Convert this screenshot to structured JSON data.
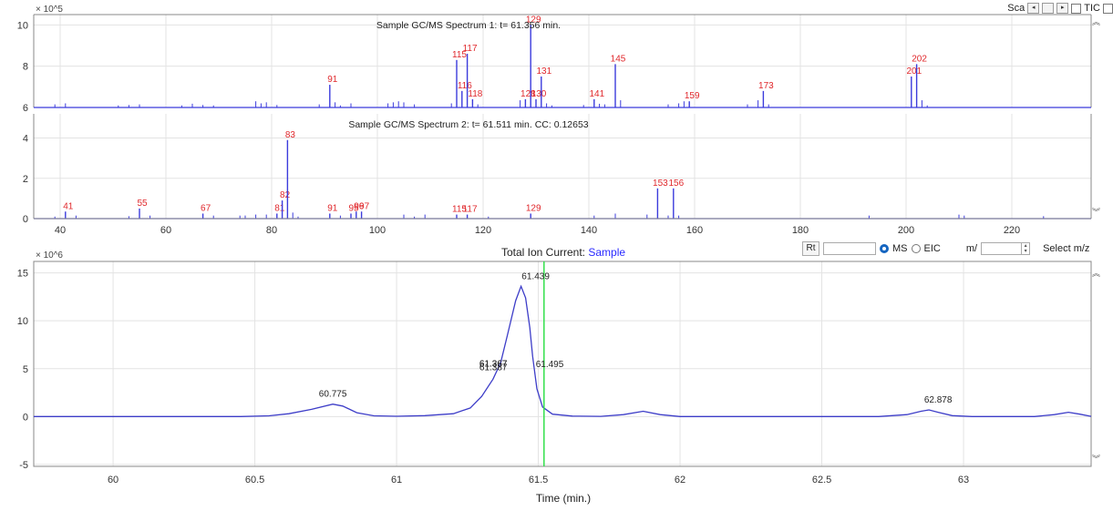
{
  "toolbar": {
    "sca_label": "Sca",
    "tic_label": "TIC"
  },
  "controls": {
    "rt_label": "Rt",
    "ms_label": "MS",
    "eic_label": "EIC",
    "mz_label": "m/",
    "select_mz_label": "Select m/z",
    "ms_selected": true
  },
  "colors": {
    "spectrum": "#3b3bdc",
    "peak_label": "#e0282c",
    "tic_line": "#3d3dc8",
    "time_cursor": "#33e04c",
    "tic_title_sample": "#2a2aff"
  },
  "chart_data": [
    {
      "type": "bar",
      "title": "Sample GC/MS Spectrum 1: t= 61.356 min.",
      "ylabel_multiplier": "× 10^5",
      "ylim": [
        6,
        10.5
      ],
      "yticks": [
        6,
        8,
        10
      ],
      "xlim": [
        35,
        235
      ],
      "grid": true,
      "labeled_peaks": [
        {
          "x": 91,
          "y": 7.1,
          "label": "91"
        },
        {
          "x": 115,
          "y": 8.3,
          "label": "115"
        },
        {
          "x": 116,
          "y": 6.8,
          "label": "116"
        },
        {
          "x": 117,
          "y": 8.6,
          "label": "117"
        },
        {
          "x": 118,
          "y": 6.4,
          "label": "118"
        },
        {
          "x": 128,
          "y": 6.4,
          "label": "128"
        },
        {
          "x": 129,
          "y": 10.0,
          "label": "129"
        },
        {
          "x": 130,
          "y": 6.4,
          "label": "130"
        },
        {
          "x": 131,
          "y": 7.5,
          "label": "131"
        },
        {
          "x": 141,
          "y": 6.4,
          "label": "141"
        },
        {
          "x": 145,
          "y": 8.1,
          "label": "145"
        },
        {
          "x": 159,
          "y": 6.3,
          "label": "159"
        },
        {
          "x": 173,
          "y": 6.8,
          "label": "173"
        },
        {
          "x": 201,
          "y": 7.5,
          "label": "201"
        },
        {
          "x": 202,
          "y": 8.1,
          "label": "202"
        }
      ],
      "minor_peaks": [
        {
          "x": 39,
          "y": 6.15
        },
        {
          "x": 41,
          "y": 6.2
        },
        {
          "x": 51,
          "y": 6.1
        },
        {
          "x": 53,
          "y": 6.12
        },
        {
          "x": 55,
          "y": 6.15
        },
        {
          "x": 63,
          "y": 6.1
        },
        {
          "x": 65,
          "y": 6.18
        },
        {
          "x": 67,
          "y": 6.12
        },
        {
          "x": 69,
          "y": 6.1
        },
        {
          "x": 77,
          "y": 6.3
        },
        {
          "x": 78,
          "y": 6.2
        },
        {
          "x": 79,
          "y": 6.25
        },
        {
          "x": 81,
          "y": 6.12
        },
        {
          "x": 89,
          "y": 6.15
        },
        {
          "x": 92,
          "y": 6.25
        },
        {
          "x": 93,
          "y": 6.1
        },
        {
          "x": 95,
          "y": 6.2
        },
        {
          "x": 102,
          "y": 6.2
        },
        {
          "x": 103,
          "y": 6.25
        },
        {
          "x": 104,
          "y": 6.3
        },
        {
          "x": 105,
          "y": 6.25
        },
        {
          "x": 107,
          "y": 6.15
        },
        {
          "x": 114,
          "y": 6.2
        },
        {
          "x": 119,
          "y": 6.15
        },
        {
          "x": 127,
          "y": 6.35
        },
        {
          "x": 132,
          "y": 6.2
        },
        {
          "x": 133,
          "y": 6.1
        },
        {
          "x": 139,
          "y": 6.12
        },
        {
          "x": 142,
          "y": 6.18
        },
        {
          "x": 143,
          "y": 6.15
        },
        {
          "x": 146,
          "y": 6.35
        },
        {
          "x": 155,
          "y": 6.15
        },
        {
          "x": 157,
          "y": 6.2
        },
        {
          "x": 158,
          "y": 6.3
        },
        {
          "x": 170,
          "y": 6.15
        },
        {
          "x": 172,
          "y": 6.35
        },
        {
          "x": 174,
          "y": 6.15
        },
        {
          "x": 203,
          "y": 6.35
        },
        {
          "x": 204,
          "y": 6.1
        }
      ]
    },
    {
      "type": "bar",
      "title": "Sample GC/MS Spectrum 2: t= 61.511 min. CC: 0.12653",
      "ylim": [
        0,
        5.2
      ],
      "yticks": [
        0,
        2,
        4
      ],
      "xlim": [
        35,
        235
      ],
      "xticks": [
        40,
        60,
        80,
        100,
        120,
        140,
        160,
        180,
        200,
        220
      ],
      "grid": true,
      "labeled_peaks": [
        {
          "x": 41,
          "y": 0.35,
          "label": "41"
        },
        {
          "x": 55,
          "y": 0.5,
          "label": "55"
        },
        {
          "x": 67,
          "y": 0.25,
          "label": "67"
        },
        {
          "x": 81,
          "y": 0.25,
          "label": "81"
        },
        {
          "x": 82,
          "y": 0.9,
          "label": "82"
        },
        {
          "x": 83,
          "y": 3.9,
          "label": "83"
        },
        {
          "x": 91,
          "y": 0.25,
          "label": "91"
        },
        {
          "x": 95,
          "y": 0.25,
          "label": "95"
        },
        {
          "x": 96,
          "y": 0.35,
          "label": "96"
        },
        {
          "x": 97,
          "y": 0.35,
          "label": "97"
        },
        {
          "x": 115,
          "y": 0.2,
          "label": "115"
        },
        {
          "x": 117,
          "y": 0.2,
          "label": "117"
        },
        {
          "x": 129,
          "y": 0.25,
          "label": "129"
        },
        {
          "x": 153,
          "y": 1.5,
          "label": "153"
        },
        {
          "x": 156,
          "y": 1.5,
          "label": "156"
        }
      ],
      "minor_peaks": [
        {
          "x": 39,
          "y": 0.1
        },
        {
          "x": 43,
          "y": 0.15
        },
        {
          "x": 53,
          "y": 0.12
        },
        {
          "x": 57,
          "y": 0.15
        },
        {
          "x": 69,
          "y": 0.15
        },
        {
          "x": 74,
          "y": 0.15
        },
        {
          "x": 75,
          "y": 0.15
        },
        {
          "x": 77,
          "y": 0.2
        },
        {
          "x": 79,
          "y": 0.2
        },
        {
          "x": 84,
          "y": 0.3
        },
        {
          "x": 85,
          "y": 0.1
        },
        {
          "x": 93,
          "y": 0.15
        },
        {
          "x": 105,
          "y": 0.2
        },
        {
          "x": 107,
          "y": 0.1
        },
        {
          "x": 109,
          "y": 0.2
        },
        {
          "x": 121,
          "y": 0.1
        },
        {
          "x": 141,
          "y": 0.15
        },
        {
          "x": 145,
          "y": 0.25
        },
        {
          "x": 151,
          "y": 0.2
        },
        {
          "x": 155,
          "y": 0.15
        },
        {
          "x": 157,
          "y": 0.15
        },
        {
          "x": 193,
          "y": 0.15
        },
        {
          "x": 210,
          "y": 0.2
        },
        {
          "x": 211,
          "y": 0.15
        },
        {
          "x": 226,
          "y": 0.12
        }
      ]
    },
    {
      "type": "line",
      "title_prefix": "Total Ion Current:",
      "title_series": "Sample",
      "xlabel": "Time (min.)",
      "ylabel_multiplier": "× 10^6",
      "xlim": [
        59.72,
        63.45
      ],
      "ylim": [
        -5.2,
        16.2
      ],
      "xticks": [
        60,
        60.5,
        61,
        61.5,
        62,
        62.5,
        63
      ],
      "yticks": [
        -5,
        0,
        5,
        10,
        15
      ],
      "grid": true,
      "cursor_time": 61.52,
      "series": [
        {
          "values": [
            [
              59.72,
              0
            ],
            [
              60.45,
              0
            ],
            [
              60.55,
              0.08
            ],
            [
              60.62,
              0.3
            ],
            [
              60.7,
              0.75
            ],
            [
              60.775,
              1.3
            ],
            [
              60.81,
              1.1
            ],
            [
              60.86,
              0.4
            ],
            [
              60.92,
              0.08
            ],
            [
              61.0,
              0.03
            ],
            [
              61.1,
              0.1
            ],
            [
              61.2,
              0.3
            ],
            [
              61.26,
              0.9
            ],
            [
              61.3,
              2.1
            ],
            [
              61.34,
              3.9
            ],
            [
              61.367,
              5.6
            ],
            [
              61.39,
              8.4
            ],
            [
              61.42,
              12.1
            ],
            [
              61.439,
              13.6
            ],
            [
              61.455,
              12.4
            ],
            [
              61.47,
              9.3
            ],
            [
              61.48,
              6.3
            ],
            [
              61.495,
              2.9
            ],
            [
              61.515,
              1.0
            ],
            [
              61.55,
              0.25
            ],
            [
              61.62,
              0.05
            ],
            [
              61.72,
              0.02
            ],
            [
              61.8,
              0.2
            ],
            [
              61.87,
              0.55
            ],
            [
              61.93,
              0.2
            ],
            [
              62.0,
              0
            ],
            [
              62.7,
              0
            ],
            [
              62.8,
              0.2
            ],
            [
              62.85,
              0.55
            ],
            [
              62.878,
              0.7
            ],
            [
              62.91,
              0.45
            ],
            [
              62.96,
              0.1
            ],
            [
              63.03,
              0
            ],
            [
              63.25,
              0
            ],
            [
              63.32,
              0.2
            ],
            [
              63.37,
              0.45
            ],
            [
              63.41,
              0.25
            ],
            [
              63.45,
              0.02
            ]
          ]
        }
      ],
      "peak_labels": [
        {
          "x": 60.775,
          "y": 1.3,
          "label": "60.775"
        },
        {
          "x": 61.367,
          "y": 5.6,
          "label": "61.367"
        },
        {
          "x": 61.439,
          "y": 13.6,
          "label": "61.439"
        },
        {
          "x": 61.495,
          "y": 2.9,
          "label": "61.495"
        },
        {
          "x": 62.878,
          "y": 0.7,
          "label": "62.878"
        }
      ],
      "extra_texts": [
        "61.367",
        "61.387"
      ]
    }
  ]
}
